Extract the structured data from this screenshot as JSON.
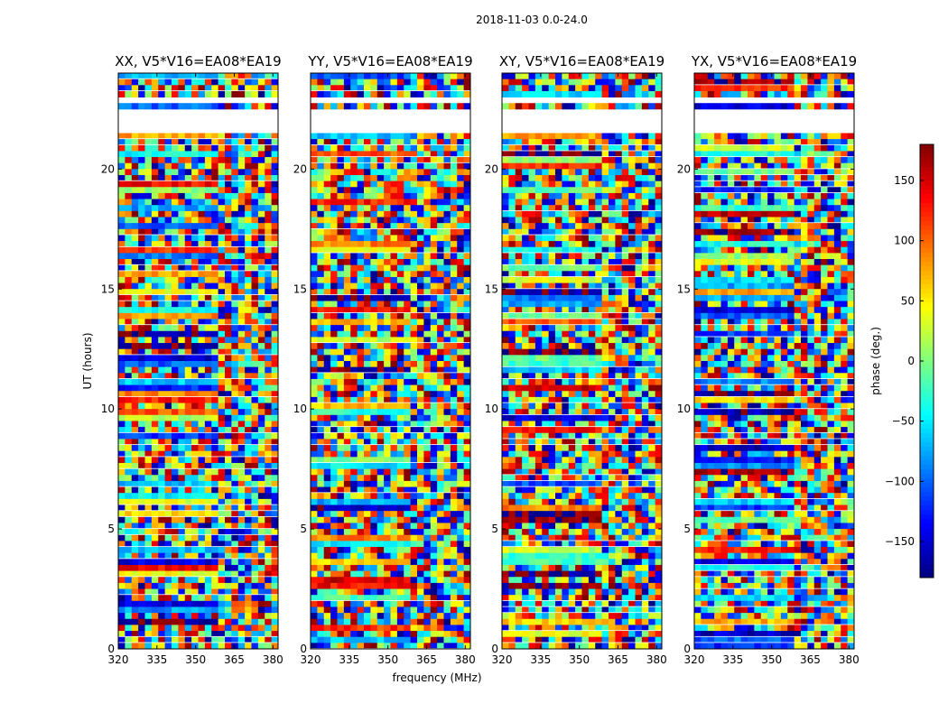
{
  "chart_data": {
    "type": "heatmap",
    "suptitle": "2018-11-03 0.0-24.0",
    "panels": [
      {
        "title": "XX, V5*V16=EA08*EA19",
        "pol": "XX"
      },
      {
        "title": "YY, V5*V16=EA08*EA19",
        "pol": "YY"
      },
      {
        "title": "XY, V5*V16=EA08*EA19",
        "pol": "XY"
      },
      {
        "title": "YX, V5*V16=EA08*EA19",
        "pol": "YX"
      }
    ],
    "xlabel": "frequency (MHz)",
    "ylabel": "UT (hours)",
    "xlim": [
      320,
      382
    ],
    "ylim": [
      0,
      24
    ],
    "xticks": [
      320,
      335,
      350,
      365,
      380
    ],
    "xtick_labels": [
      "320",
      "335",
      "350",
      "365",
      "380"
    ],
    "yticks": [
      0,
      5,
      10,
      15,
      20
    ],
    "ytick_labels": [
      "0",
      "5",
      "10",
      "15",
      "20"
    ],
    "colorbar": {
      "label": "phase (deg.)",
      "range": [
        -180,
        180
      ],
      "ticks": [
        -150,
        -100,
        -50,
        0,
        50,
        100,
        150
      ],
      "tick_labels": [
        "−150",
        "−100",
        "−50",
        "0",
        "50",
        "100",
        "150"
      ],
      "colormap": "jet"
    },
    "blank_rows_hours": [
      [
        21.6,
        22.5
      ],
      [
        22.8,
        23.1
      ]
    ]
  }
}
